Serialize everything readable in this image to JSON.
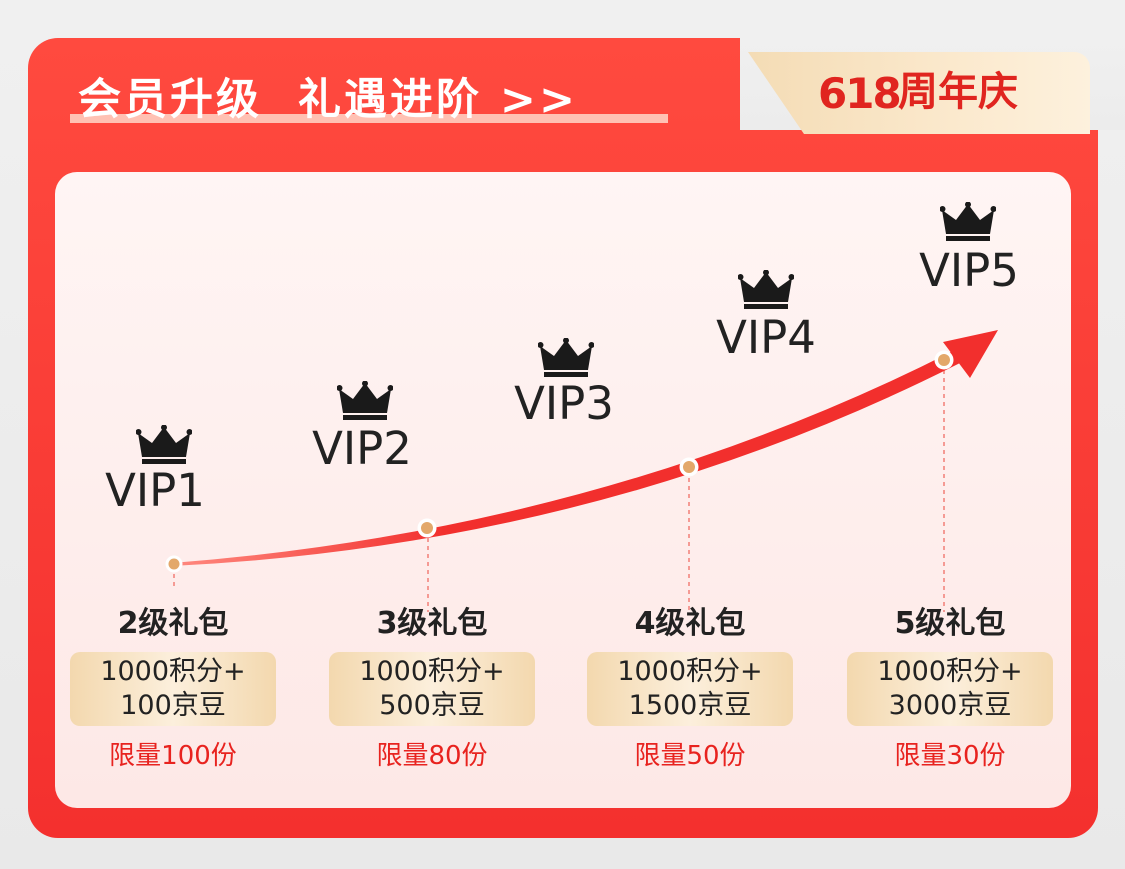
{
  "header": {
    "title": "会员升级  礼遇进阶 >>",
    "badge_number": "618",
    "badge_text": "周年庆"
  },
  "levels": [
    {
      "label": "VIP1",
      "icon": "crown-icon"
    },
    {
      "label": "VIP2",
      "icon": "crown-icon"
    },
    {
      "label": "VIP3",
      "icon": "crown-icon"
    },
    {
      "label": "VIP4",
      "icon": "crown-icon"
    },
    {
      "label": "VIP5",
      "icon": "crown-icon"
    }
  ],
  "packages": [
    {
      "title": "2级礼包",
      "reward_line1": "1000积分+",
      "reward_line2": "100京豆",
      "limit": "限量100份"
    },
    {
      "title": "3级礼包",
      "reward_line1": "1000积分+",
      "reward_line2": "500京豆",
      "limit": "限量80份"
    },
    {
      "title": "4级礼包",
      "reward_line1": "1000积分+",
      "reward_line2": "1500京豆",
      "limit": "限量50份"
    },
    {
      "title": "5级礼包",
      "reward_line1": "1000积分+",
      "reward_line2": "3000京豆",
      "limit": "限量30份"
    }
  ],
  "colors": {
    "primary_red": "#f4302e",
    "accent_red": "#e8231f",
    "gold": "#f3d8ae",
    "panel_bg": "#fff5f4",
    "text_dark": "#222222"
  }
}
